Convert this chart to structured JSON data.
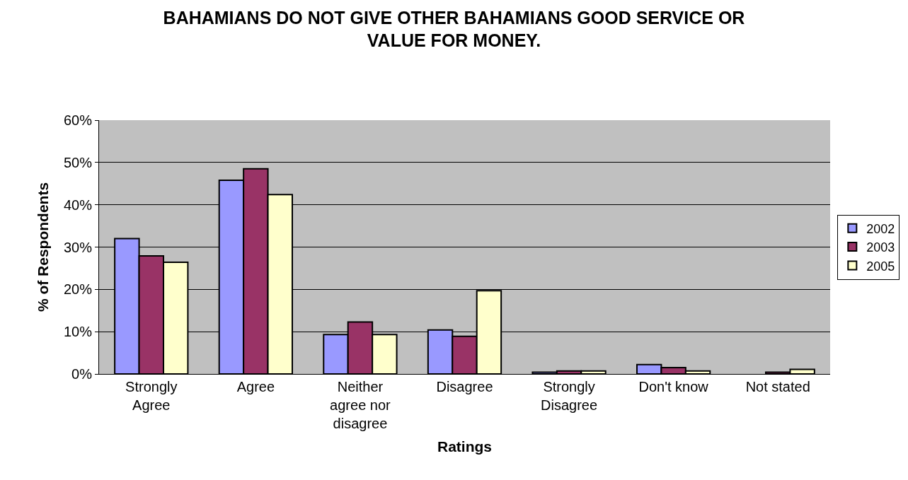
{
  "chart_data": {
    "type": "bar",
    "title": "BAHAMIANS DO NOT GIVE OTHER BAHAMIANS GOOD SERVICE OR VALUE FOR MONEY.",
    "xlabel": "Ratings",
    "ylabel": "% of Respondents",
    "categories": [
      "Strongly Agree",
      "Agree",
      "Neither agree nor disagree",
      "Disagree",
      "Strongly Disagree",
      "Don't know",
      "Not stated"
    ],
    "series": [
      {
        "name": "2002",
        "color": "#9999ff",
        "values": [
          32.0,
          45.8,
          9.3,
          10.4,
          0.4,
          2.2,
          null
        ]
      },
      {
        "name": "2003",
        "color": "#993366",
        "values": [
          27.9,
          48.5,
          12.3,
          8.9,
          0.7,
          1.5,
          0.4
        ]
      },
      {
        "name": "2005",
        "color": "#ffffcc",
        "values": [
          26.4,
          42.4,
          9.3,
          19.7,
          0.7,
          0.7,
          1.1
        ]
      }
    ],
    "ylim": [
      0,
      60
    ],
    "yticks": [
      {
        "value": 0,
        "label": "0%"
      },
      {
        "value": 10,
        "label": "10%"
      },
      {
        "value": 20,
        "label": "20%"
      },
      {
        "value": 30,
        "label": "30%"
      },
      {
        "value": 40,
        "label": "40%"
      },
      {
        "value": 50,
        "label": "50%"
      },
      {
        "value": 60,
        "label": "60%"
      }
    ],
    "grid": "y",
    "legend": "right"
  }
}
